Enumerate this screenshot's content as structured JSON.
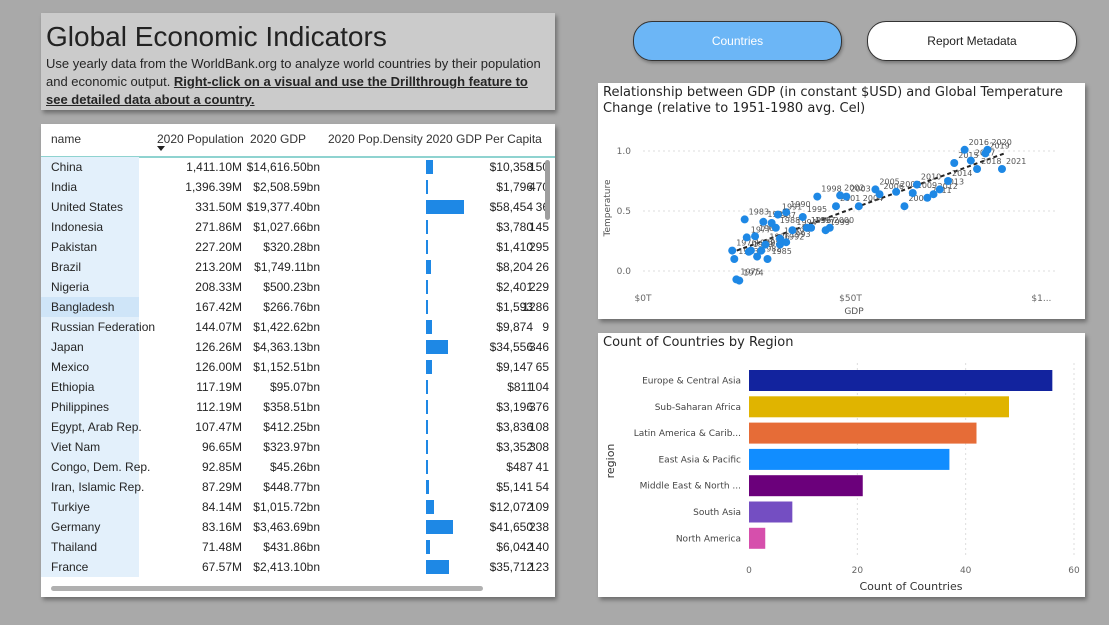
{
  "header": {
    "title": "Global Economic Indicators",
    "description": "Use yearly data from the WorldBank.org to analyze world countries by their population and economic output. ",
    "description_bold": "Right-click on a visual and use the Drillthrough feature to see detailed data about a country."
  },
  "nav": {
    "countries_label": "Countries",
    "metadata_label": "Report Metadata"
  },
  "table": {
    "columns": [
      "name",
      "2020 Population",
      "2020 GDP",
      "2020 Pop.Density",
      "2020 GDP Per Capita"
    ],
    "rows": [
      {
        "name": "China",
        "pop": "1,411.10M",
        "gdp": "$14,616.50bn",
        "density": "150",
        "gpc": "$10,358",
        "gpc_value": 10358
      },
      {
        "name": "India",
        "pop": "1,396.39M",
        "gdp": "$2,508.59bn",
        "density": "470",
        "gpc": "$1,796",
        "gpc_value": 1796
      },
      {
        "name": "United States",
        "pop": "331.50M",
        "gdp": "$19,377.40bn",
        "density": "36",
        "gpc": "$58,454",
        "gpc_value": 58454
      },
      {
        "name": "Indonesia",
        "pop": "271.86M",
        "gdp": "$1,027.66bn",
        "density": "145",
        "gpc": "$3,780",
        "gpc_value": 3780
      },
      {
        "name": "Pakistan",
        "pop": "227.20M",
        "gdp": "$320.28bn",
        "density": "295",
        "gpc": "$1,410",
        "gpc_value": 1410
      },
      {
        "name": "Brazil",
        "pop": "213.20M",
        "gdp": "$1,749.11bn",
        "density": "26",
        "gpc": "$8,204",
        "gpc_value": 8204
      },
      {
        "name": "Nigeria",
        "pop": "208.33M",
        "gdp": "$500.23bn",
        "density": "229",
        "gpc": "$2,401",
        "gpc_value": 2401
      },
      {
        "name": "Bangladesh",
        "pop": "167.42M",
        "gdp": "$266.76bn",
        "density": "1286",
        "gpc": "$1,593",
        "gpc_value": 1593
      },
      {
        "name": "Russian Federation",
        "pop": "144.07M",
        "gdp": "$1,422.62bn",
        "density": "9",
        "gpc": "$9,874",
        "gpc_value": 9874
      },
      {
        "name": "Japan",
        "pop": "126.26M",
        "gdp": "$4,363.13bn",
        "density": "346",
        "gpc": "$34,556",
        "gpc_value": 34556
      },
      {
        "name": "Mexico",
        "pop": "126.00M",
        "gdp": "$1,152.51bn",
        "density": "65",
        "gpc": "$9,147",
        "gpc_value": 9147
      },
      {
        "name": "Ethiopia",
        "pop": "117.19M",
        "gdp": "$95.07bn",
        "density": "104",
        "gpc": "$811",
        "gpc_value": 811
      },
      {
        "name": "Philippines",
        "pop": "112.19M",
        "gdp": "$358.51bn",
        "density": "376",
        "gpc": "$3,196",
        "gpc_value": 3196
      },
      {
        "name": "Egypt, Arab Rep.",
        "pop": "107.47M",
        "gdp": "$412.25bn",
        "density": "108",
        "gpc": "$3,836",
        "gpc_value": 3836
      },
      {
        "name": "Viet Nam",
        "pop": "96.65M",
        "gdp": "$323.97bn",
        "density": "308",
        "gpc": "$3,352",
        "gpc_value": 3352
      },
      {
        "name": "Congo, Dem. Rep.",
        "pop": "92.85M",
        "gdp": "$45.26bn",
        "density": "41",
        "gpc": "$487",
        "gpc_value": 487
      },
      {
        "name": "Iran, Islamic Rep.",
        "pop": "87.29M",
        "gdp": "$448.77bn",
        "density": "54",
        "gpc": "$5,141",
        "gpc_value": 5141
      },
      {
        "name": "Turkiye",
        "pop": "84.14M",
        "gdp": "$1,015.72bn",
        "density": "109",
        "gpc": "$12,072",
        "gpc_value": 12072
      },
      {
        "name": "Germany",
        "pop": "83.16M",
        "gdp": "$3,463.69bn",
        "density": "238",
        "gpc": "$41,650",
        "gpc_value": 41650
      },
      {
        "name": "Thailand",
        "pop": "71.48M",
        "gdp": "$431.86bn",
        "density": "140",
        "gpc": "$6,042",
        "gpc_value": 6042
      },
      {
        "name": "France",
        "pop": "67.57M",
        "gdp": "$2,413.10bn",
        "density": "123",
        "gpc": "$35,712",
        "gpc_value": 35712
      }
    ]
  },
  "chart_data": [
    {
      "type": "scatter",
      "title": "Relationship between GDP (in constant $USD) and Global Temperature Change (relative to 1951-1980 avg. Cel)",
      "xlabel": "GDP",
      "ylabel": "Temperature",
      "x_ticks": [
        "$0T",
        "$50T",
        "$1..."
      ],
      "y_ticks": [
        "0.0",
        "0.5",
        "1.0"
      ],
      "xlim": [
        0,
        100
      ],
      "ylim": [
        -0.1,
        1.15
      ],
      "trendline": true,
      "points": [
        {
          "label": "1975",
          "x": 22.5,
          "y": -0.07
        },
        {
          "label": "1974",
          "x": 23.2,
          "y": -0.08
        },
        {
          "label": "1973",
          "x": 22.0,
          "y": 0.1
        },
        {
          "label": "1976",
          "x": 21.5,
          "y": 0.17
        },
        {
          "label": "1977",
          "x": 25.0,
          "y": 0.28
        },
        {
          "label": "1978",
          "x": 26.0,
          "y": 0.17
        },
        {
          "label": "1979",
          "x": 25.5,
          "y": 0.16
        },
        {
          "label": "1980",
          "x": 27.0,
          "y": 0.29
        },
        {
          "label": "1981",
          "x": 29.0,
          "y": 0.41
        },
        {
          "label": "1982",
          "x": 27.5,
          "y": 0.12
        },
        {
          "label": "1983",
          "x": 24.5,
          "y": 0.43
        },
        {
          "label": "1984",
          "x": 28.5,
          "y": 0.17
        },
        {
          "label": "1985",
          "x": 30.0,
          "y": 0.1
        },
        {
          "label": "1986",
          "x": 29.5,
          "y": 0.22
        },
        {
          "label": "1987",
          "x": 31.0,
          "y": 0.4
        },
        {
          "label": "1988",
          "x": 32.0,
          "y": 0.36
        },
        {
          "label": "1989",
          "x": 33.0,
          "y": 0.27
        },
        {
          "label": "1990",
          "x": 34.5,
          "y": 0.49
        },
        {
          "label": "1991",
          "x": 32.5,
          "y": 0.47
        },
        {
          "label": "1992",
          "x": 33.0,
          "y": 0.22
        },
        {
          "label": "1993",
          "x": 34.5,
          "y": 0.24
        },
        {
          "label": "1994",
          "x": 36.0,
          "y": 0.34
        },
        {
          "label": "1995",
          "x": 38.5,
          "y": 0.45
        },
        {
          "label": "1996",
          "x": 39.5,
          "y": 0.36
        },
        {
          "label": "1997",
          "x": 40.5,
          "y": 0.36
        },
        {
          "label": "1998",
          "x": 42.0,
          "y": 0.62
        },
        {
          "label": "1999",
          "x": 44.0,
          "y": 0.34
        },
        {
          "label": "2000",
          "x": 45.0,
          "y": 0.36
        },
        {
          "label": "2001",
          "x": 46.5,
          "y": 0.54
        },
        {
          "label": "2002",
          "x": 47.5,
          "y": 0.63
        },
        {
          "label": "2003",
          "x": 49.0,
          "y": 0.62
        },
        {
          "label": "2004",
          "x": 52.0,
          "y": 0.54
        },
        {
          "label": "2005",
          "x": 56.0,
          "y": 0.68
        },
        {
          "label": "2006",
          "x": 57.0,
          "y": 0.64
        },
        {
          "label": "2007",
          "x": 61.0,
          "y": 0.66
        },
        {
          "label": "2008",
          "x": 63.0,
          "y": 0.54
        },
        {
          "label": "2009",
          "x": 65.0,
          "y": 0.65
        },
        {
          "label": "2010",
          "x": 66.0,
          "y": 0.72
        },
        {
          "label": "2011",
          "x": 68.5,
          "y": 0.61
        },
        {
          "label": "2012",
          "x": 70.0,
          "y": 0.64
        },
        {
          "label": "2013",
          "x": 71.5,
          "y": 0.68
        },
        {
          "label": "2014",
          "x": 73.5,
          "y": 0.75
        },
        {
          "label": "2015",
          "x": 75.0,
          "y": 0.9
        },
        {
          "label": "2016",
          "x": 77.5,
          "y": 1.01
        },
        {
          "label": "2017",
          "x": 79.0,
          "y": 0.92
        },
        {
          "label": "2018",
          "x": 80.5,
          "y": 0.85
        },
        {
          "label": "2019",
          "x": 82.5,
          "y": 0.98
        },
        {
          "label": "2020",
          "x": 83.0,
          "y": 1.01
        },
        {
          "label": "2021",
          "x": 86.5,
          "y": 0.85
        }
      ]
    },
    {
      "type": "bar",
      "orientation": "horizontal",
      "title": "Count of Countries by Region",
      "xlabel": "Count of Countries",
      "ylabel": "region",
      "xlim": [
        0,
        60
      ],
      "x_ticks": [
        "0",
        "20",
        "40",
        "60"
      ],
      "categories": [
        "Europe & Central Asia",
        "Sub-Saharan Africa",
        "Latin America & Carib...",
        "East Asia & Pacific",
        "Middle East & North ...",
        "South Asia",
        "North America"
      ],
      "values": [
        56,
        48,
        42,
        37,
        21,
        8,
        3
      ],
      "colors": [
        "#12239e",
        "#e0b400",
        "#e66c37",
        "#118dff",
        "#6b007b",
        "#744ec2",
        "#d64fac"
      ]
    }
  ],
  "colors": {
    "accent": "#6cb6f6",
    "bar_blue": "#1e88e5",
    "density_bg": "#e3f0fb"
  }
}
